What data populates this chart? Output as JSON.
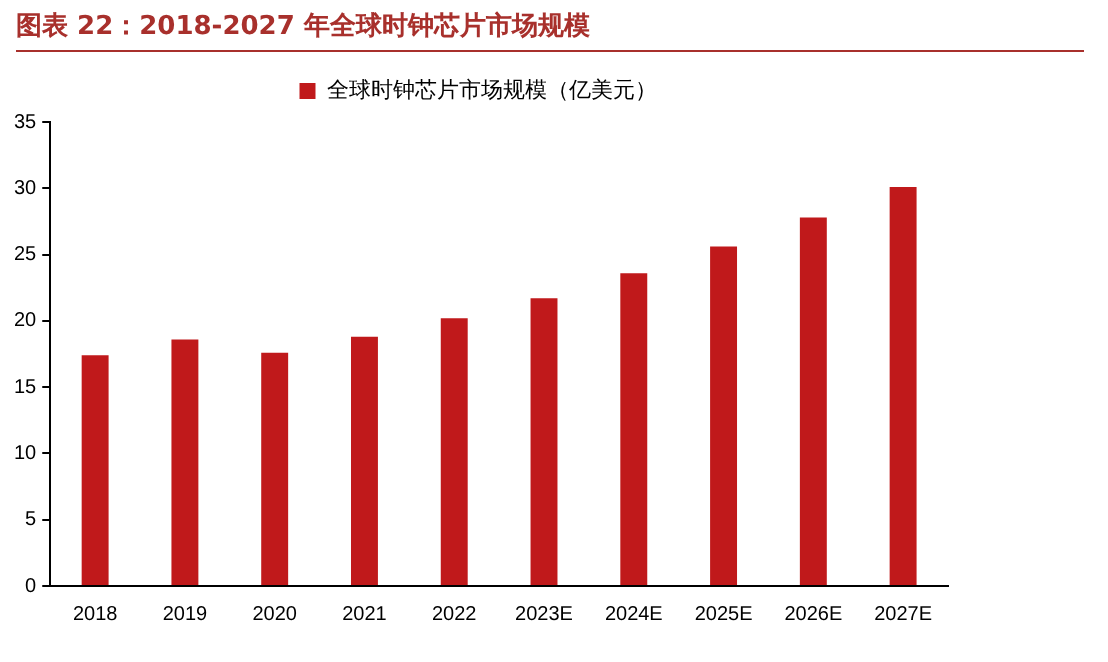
{
  "chart_data": {
    "type": "bar",
    "title": "图表 22：2018-2027 年全球时钟芯片市场规模",
    "categories": [
      "2018",
      "2019",
      "2020",
      "2021",
      "2022",
      "2023E",
      "2024E",
      "2025E",
      "2026E",
      "2027E"
    ],
    "series": [
      {
        "name": "全球时钟芯片市场规模（亿美元）",
        "color": "#c0191b",
        "values": [
          17.4,
          18.6,
          17.6,
          18.8,
          20.2,
          21.7,
          23.6,
          25.6,
          27.8,
          30.1
        ]
      }
    ],
    "ylim": [
      0,
      35
    ],
    "yticks": [
      0,
      5,
      10,
      15,
      20,
      25,
      30,
      35
    ],
    "grid": false,
    "legend": "top"
  }
}
